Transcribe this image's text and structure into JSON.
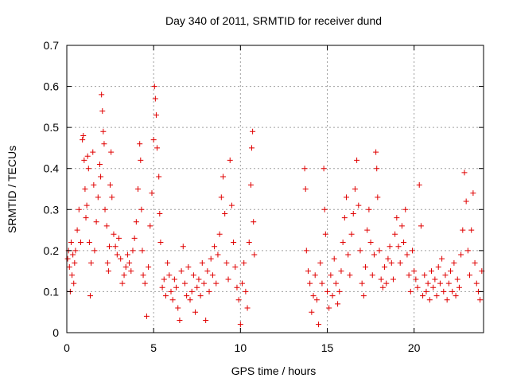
{
  "chart_data": {
    "type": "scatter",
    "title": "Day 340 of 2011, SRMTID for receiver dund",
    "xlabel": "GPS time / hours",
    "ylabel": "SRMTID / TECUs",
    "xlim": [
      0,
      24
    ],
    "ylim": [
      0,
      0.7
    ],
    "x_ticks": [
      0,
      5,
      10,
      15,
      20
    ],
    "x_tick_labels": [
      "0",
      "5",
      "10",
      "15",
      "20"
    ],
    "y_ticks": [
      0,
      0.1,
      0.2,
      0.3,
      0.4,
      0.5,
      0.6,
      0.7
    ],
    "y_tick_labels": [
      "0",
      "0.1",
      "0.2",
      "0.3",
      "0.4",
      "0.5",
      "0.6",
      "0.7"
    ],
    "grid": true,
    "marker": "plus",
    "color": "#e00000",
    "data_gap_hours": [
      10.9,
      13.6
    ],
    "series": [
      {
        "name": "SRMTID",
        "points": [
          [
            0.05,
            0.18
          ],
          [
            0.1,
            0.2
          ],
          [
            0.15,
            0.16
          ],
          [
            0.2,
            0.1
          ],
          [
            0.25,
            0.22
          ],
          [
            0.3,
            0.14
          ],
          [
            0.35,
            0.19
          ],
          [
            0.4,
            0.12
          ],
          [
            0.45,
            0.17
          ],
          [
            0.5,
            0.2
          ],
          [
            0.6,
            0.25
          ],
          [
            0.7,
            0.3
          ],
          [
            0.8,
            0.22
          ],
          [
            0.9,
            0.47
          ],
          [
            0.95,
            0.48
          ],
          [
            1.0,
            0.42
          ],
          [
            1.05,
            0.35
          ],
          [
            1.1,
            0.28
          ],
          [
            1.15,
            0.31
          ],
          [
            1.2,
            0.43
          ],
          [
            1.25,
            0.4
          ],
          [
            1.3,
            0.22
          ],
          [
            1.35,
            0.09
          ],
          [
            1.4,
            0.17
          ],
          [
            1.5,
            0.44
          ],
          [
            1.55,
            0.36
          ],
          [
            1.6,
            0.2
          ],
          [
            1.7,
            0.27
          ],
          [
            1.8,
            0.33
          ],
          [
            1.9,
            0.41
          ],
          [
            1.95,
            0.38
          ],
          [
            2.0,
            0.58
          ],
          [
            2.05,
            0.54
          ],
          [
            2.1,
            0.49
          ],
          [
            2.15,
            0.46
          ],
          [
            2.2,
            0.3
          ],
          [
            2.3,
            0.26
          ],
          [
            2.35,
            0.17
          ],
          [
            2.4,
            0.15
          ],
          [
            2.45,
            0.21
          ],
          [
            2.5,
            0.36
          ],
          [
            2.55,
            0.44
          ],
          [
            2.6,
            0.33
          ],
          [
            2.7,
            0.24
          ],
          [
            2.8,
            0.21
          ],
          [
            2.9,
            0.19
          ],
          [
            3.0,
            0.23
          ],
          [
            3.1,
            0.18
          ],
          [
            3.2,
            0.12
          ],
          [
            3.3,
            0.14
          ],
          [
            3.4,
            0.16
          ],
          [
            3.5,
            0.19
          ],
          [
            3.6,
            0.17
          ],
          [
            3.7,
            0.15
          ],
          [
            3.8,
            0.2
          ],
          [
            3.9,
            0.23
          ],
          [
            4.0,
            0.27
          ],
          [
            4.1,
            0.35
          ],
          [
            4.2,
            0.46
          ],
          [
            4.25,
            0.42
          ],
          [
            4.3,
            0.3
          ],
          [
            4.35,
            0.2
          ],
          [
            4.4,
            0.14
          ],
          [
            4.5,
            0.12
          ],
          [
            4.6,
            0.04
          ],
          [
            4.7,
            0.16
          ],
          [
            4.8,
            0.26
          ],
          [
            4.9,
            0.34
          ],
          [
            5.0,
            0.47
          ],
          [
            5.05,
            0.6
          ],
          [
            5.1,
            0.57
          ],
          [
            5.15,
            0.53
          ],
          [
            5.2,
            0.45
          ],
          [
            5.3,
            0.38
          ],
          [
            5.35,
            0.29
          ],
          [
            5.4,
            0.22
          ],
          [
            5.5,
            0.11
          ],
          [
            5.6,
            0.13
          ],
          [
            5.7,
            0.09
          ],
          [
            5.8,
            0.17
          ],
          [
            5.9,
            0.14
          ],
          [
            6.0,
            0.1
          ],
          [
            6.1,
            0.08
          ],
          [
            6.2,
            0.13
          ],
          [
            6.3,
            0.11
          ],
          [
            6.4,
            0.06
          ],
          [
            6.5,
            0.03
          ],
          [
            6.6,
            0.15
          ],
          [
            6.7,
            0.21
          ],
          [
            6.8,
            0.12
          ],
          [
            6.9,
            0.09
          ],
          [
            7.0,
            0.16
          ],
          [
            7.1,
            0.08
          ],
          [
            7.2,
            0.1
          ],
          [
            7.3,
            0.14
          ],
          [
            7.4,
            0.05
          ],
          [
            7.5,
            0.11
          ],
          [
            7.6,
            0.13
          ],
          [
            7.7,
            0.09
          ],
          [
            7.8,
            0.17
          ],
          [
            7.9,
            0.12
          ],
          [
            8.0,
            0.03
          ],
          [
            8.1,
            0.15
          ],
          [
            8.2,
            0.1
          ],
          [
            8.3,
            0.18
          ],
          [
            8.4,
            0.14
          ],
          [
            8.5,
            0.21
          ],
          [
            8.6,
            0.12
          ],
          [
            8.7,
            0.19
          ],
          [
            8.8,
            0.24
          ],
          [
            8.9,
            0.33
          ],
          [
            9.0,
            0.38
          ],
          [
            9.1,
            0.29
          ],
          [
            9.2,
            0.17
          ],
          [
            9.3,
            0.13
          ],
          [
            9.4,
            0.42
          ],
          [
            9.5,
            0.31
          ],
          [
            9.6,
            0.22
          ],
          [
            9.7,
            0.16
          ],
          [
            9.8,
            0.11
          ],
          [
            9.9,
            0.08
          ],
          [
            10.0,
            0.02
          ],
          [
            10.1,
            0.12
          ],
          [
            10.2,
            0.17
          ],
          [
            10.3,
            0.1
          ],
          [
            10.4,
            0.06
          ],
          [
            10.5,
            0.22
          ],
          [
            10.6,
            0.36
          ],
          [
            10.65,
            0.45
          ],
          [
            10.7,
            0.49
          ],
          [
            10.75,
            0.27
          ],
          [
            10.8,
            0.19
          ],
          [
            13.7,
            0.4
          ],
          [
            13.75,
            0.35
          ],
          [
            13.8,
            0.2
          ],
          [
            13.9,
            0.15
          ],
          [
            14.0,
            0.12
          ],
          [
            14.1,
            0.05
          ],
          [
            14.2,
            0.09
          ],
          [
            14.3,
            0.14
          ],
          [
            14.4,
            0.08
          ],
          [
            14.5,
            0.02
          ],
          [
            14.6,
            0.17
          ],
          [
            14.7,
            0.12
          ],
          [
            14.8,
            0.4
          ],
          [
            14.85,
            0.3
          ],
          [
            14.9,
            0.24
          ],
          [
            15.0,
            0.1
          ],
          [
            15.1,
            0.06
          ],
          [
            15.2,
            0.14
          ],
          [
            15.3,
            0.09
          ],
          [
            15.4,
            0.18
          ],
          [
            15.5,
            0.12
          ],
          [
            15.6,
            0.07
          ],
          [
            15.7,
            0.1
          ],
          [
            15.8,
            0.15
          ],
          [
            15.9,
            0.22
          ],
          [
            16.0,
            0.28
          ],
          [
            16.1,
            0.33
          ],
          [
            16.2,
            0.19
          ],
          [
            16.3,
            0.14
          ],
          [
            16.4,
            0.24
          ],
          [
            16.5,
            0.29
          ],
          [
            16.6,
            0.35
          ],
          [
            16.7,
            0.42
          ],
          [
            16.8,
            0.31
          ],
          [
            16.9,
            0.2
          ],
          [
            17.0,
            0.12
          ],
          [
            17.1,
            0.09
          ],
          [
            17.2,
            0.16
          ],
          [
            17.3,
            0.25
          ],
          [
            17.4,
            0.3
          ],
          [
            17.5,
            0.22
          ],
          [
            17.6,
            0.14
          ],
          [
            17.7,
            0.19
          ],
          [
            17.8,
            0.44
          ],
          [
            17.85,
            0.4
          ],
          [
            17.9,
            0.33
          ],
          [
            18.0,
            0.2
          ],
          [
            18.1,
            0.13
          ],
          [
            18.2,
            0.11
          ],
          [
            18.3,
            0.16
          ],
          [
            18.4,
            0.12
          ],
          [
            18.5,
            0.18
          ],
          [
            18.6,
            0.21
          ],
          [
            18.7,
            0.17
          ],
          [
            18.8,
            0.13
          ],
          [
            18.9,
            0.24
          ],
          [
            19.0,
            0.28
          ],
          [
            19.1,
            0.21
          ],
          [
            19.2,
            0.17
          ],
          [
            19.3,
            0.26
          ],
          [
            19.4,
            0.22
          ],
          [
            19.5,
            0.3
          ],
          [
            19.6,
            0.19
          ],
          [
            19.7,
            0.14
          ],
          [
            19.8,
            0.1
          ],
          [
            19.9,
            0.2
          ],
          [
            20.0,
            0.15
          ],
          [
            20.1,
            0.13
          ],
          [
            20.2,
            0.11
          ],
          [
            20.3,
            0.36
          ],
          [
            20.4,
            0.26
          ],
          [
            20.5,
            0.09
          ],
          [
            20.6,
            0.14
          ],
          [
            20.7,
            0.1
          ],
          [
            20.8,
            0.12
          ],
          [
            20.9,
            0.08
          ],
          [
            21.0,
            0.15
          ],
          [
            21.1,
            0.11
          ],
          [
            21.2,
            0.13
          ],
          [
            21.3,
            0.09
          ],
          [
            21.4,
            0.16
          ],
          [
            21.5,
            0.12
          ],
          [
            21.6,
            0.18
          ],
          [
            21.7,
            0.1
          ],
          [
            21.8,
            0.14
          ],
          [
            21.9,
            0.08
          ],
          [
            22.0,
            0.12
          ],
          [
            22.1,
            0.15
          ],
          [
            22.2,
            0.1
          ],
          [
            22.3,
            0.17
          ],
          [
            22.4,
            0.09
          ],
          [
            22.5,
            0.13
          ],
          [
            22.6,
            0.11
          ],
          [
            22.7,
            0.19
          ],
          [
            22.8,
            0.25
          ],
          [
            22.9,
            0.39
          ],
          [
            23.0,
            0.32
          ],
          [
            23.1,
            0.2
          ],
          [
            23.2,
            0.14
          ],
          [
            23.3,
            0.25
          ],
          [
            23.4,
            0.34
          ],
          [
            23.5,
            0.17
          ],
          [
            23.6,
            0.12
          ],
          [
            23.7,
            0.1
          ],
          [
            23.8,
            0.08
          ],
          [
            23.9,
            0.15
          ]
        ]
      }
    ]
  }
}
